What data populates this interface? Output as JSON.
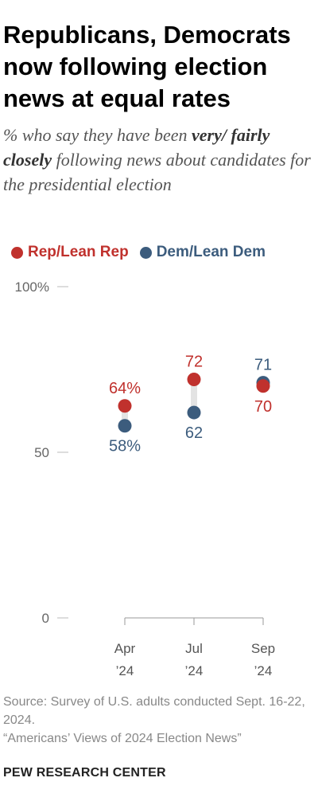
{
  "title": "Republicans, Democrats now following election news at equal rates",
  "subtitle_parts": [
    "% who say they have been ",
    "very/ fairly closely",
    " following news about candidates for the presidential election"
  ],
  "legend": [
    {
      "label": "Rep/Lean Rep",
      "color": "#c0312d"
    },
    {
      "label": "Dem/Lean Dem",
      "color": "#3c5c7d"
    }
  ],
  "chart_data": {
    "type": "dot_plot",
    "x": [
      [
        "Apr",
        "’24"
      ],
      [
        "Jul",
        "’24"
      ],
      [
        "Sep",
        "’24"
      ]
    ],
    "series": [
      {
        "name": "Rep/Lean Rep",
        "values": [
          64,
          72,
          70
        ],
        "labels": [
          "64%",
          "72",
          "70"
        ],
        "color": "#c0312d"
      },
      {
        "name": "Dem/Lean Dem",
        "values": [
          58,
          62,
          71
        ],
        "labels": [
          "58%",
          "62",
          "71"
        ],
        "color": "#3c5c7d"
      }
    ],
    "y_ticks": [
      {
        "value": 100,
        "label": "100%"
      },
      {
        "value": 50,
        "label": "50"
      },
      {
        "value": 0,
        "label": "0"
      }
    ],
    "ylim": [
      0,
      100
    ],
    "grid": false,
    "legend_position": "top-left"
  },
  "source": "Source: Survey of U.S. adults conducted Sept. 16-22, 2024.",
  "report": "“Americans’ Views of 2024 Election News”",
  "brand": "PEW RESEARCH CENTER"
}
